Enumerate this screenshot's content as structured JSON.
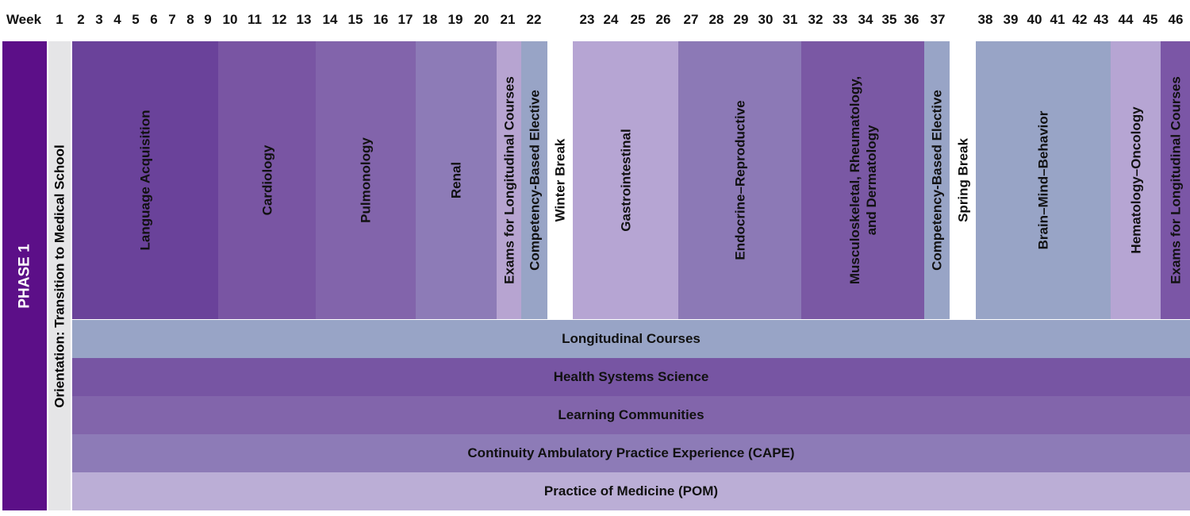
{
  "header": {
    "week_label": "Week",
    "weeks": [
      "1",
      "2",
      "3",
      "4",
      "5",
      "6",
      "7",
      "8",
      "9",
      "10",
      "11",
      "12",
      "13",
      "14",
      "15",
      "16",
      "17",
      "18",
      "19",
      "20",
      "21",
      "22",
      "23",
      "24",
      "25",
      "26",
      "27",
      "28",
      "29",
      "30",
      "31",
      "32",
      "33",
      "34",
      "35",
      "36",
      "37",
      "38",
      "39",
      "40",
      "41",
      "42",
      "43",
      "44",
      "45",
      "46"
    ]
  },
  "phase": {
    "label": "PHASE 1",
    "color": "#5c0f88"
  },
  "orientation": {
    "label": "Orientation: Transition to Medical School",
    "color": "#e5e5e7"
  },
  "blocks": [
    {
      "lines": [
        "Language Acquisition"
      ],
      "color": "#6a429a"
    },
    {
      "lines": [
        "Cardiology"
      ],
      "color": "#7955a3"
    },
    {
      "lines": [
        "Pulmonology"
      ],
      "color": "#8264ab"
    },
    {
      "lines": [
        "Renal"
      ],
      "color": "#8d7bb7"
    },
    {
      "lines": [
        "Exams for Longitudinal Courses"
      ],
      "color": "#b7a4d1"
    },
    {
      "lines": [
        "Competency-Based Elective"
      ],
      "color": "#98a4c6"
    },
    {
      "lines": [
        "Winter Break"
      ],
      "color": "#ffffff"
    },
    {
      "lines": [
        "Gastrointestinal"
      ],
      "color": "#b6a5d3"
    },
    {
      "lines": [
        "Endocrine–Reproductive"
      ],
      "color": "#8c79b6"
    },
    {
      "lines": [
        "Musculoskeletal, Rheumatology,",
        "and Dermatology"
      ],
      "color": "#7a58a4"
    },
    {
      "lines": [
        "Competency-Based Elective"
      ],
      "color": "#98a4c6"
    },
    {
      "lines": [
        "Spring Break"
      ],
      "color": "#ffffff"
    },
    {
      "lines": [
        "Brain–Mind–Behavior"
      ],
      "color": "#98a4c6"
    },
    {
      "lines": [
        "Hematology–Oncology"
      ],
      "color": "#b6a5d3"
    },
    {
      "lines": [
        "Exams for Longitudinal Courses"
      ],
      "color": "#7b56a6"
    }
  ],
  "courses": [
    {
      "label": "Longitudinal Courses",
      "color": "#98a4c6"
    },
    {
      "label": "Health Systems Science",
      "color": "#7755a3"
    },
    {
      "label": "Learning Communities",
      "color": "#8265ab"
    },
    {
      "label": "Continuity Ambulatory Practice Experience (CAPE)",
      "color": "#8d7bb7"
    },
    {
      "label": "Practice of Medicine (POM)",
      "color": "#bbaed6"
    }
  ]
}
